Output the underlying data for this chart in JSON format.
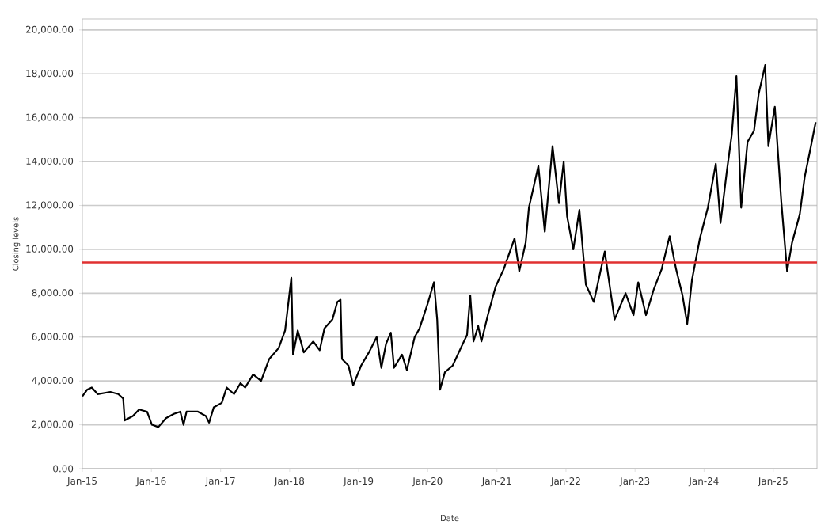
{
  "chart_data": {
    "type": "line",
    "xlabel": "Date",
    "ylabel": "Closing levels",
    "xlim": [
      "2015-01-01",
      "2025-08-20"
    ],
    "ylim": [
      0,
      20500
    ],
    "xticks": [
      {
        "value": "2015-01-01",
        "label": "Jan-15"
      },
      {
        "value": "2016-01-01",
        "label": "Jan-16"
      },
      {
        "value": "2017-01-01",
        "label": "Jan-17"
      },
      {
        "value": "2018-01-01",
        "label": "Jan-18"
      },
      {
        "value": "2019-01-01",
        "label": "Jan-19"
      },
      {
        "value": "2020-01-01",
        "label": "Jan-20"
      },
      {
        "value": "2021-01-01",
        "label": "Jan-21"
      },
      {
        "value": "2022-01-01",
        "label": "Jan-22"
      },
      {
        "value": "2023-01-01",
        "label": "Jan-23"
      },
      {
        "value": "2024-01-01",
        "label": "Jan-24"
      },
      {
        "value": "2025-01-01",
        "label": "Jan-25"
      }
    ],
    "yticks": [
      {
        "value": 0,
        "label": "0.00"
      },
      {
        "value": 2000,
        "label": "2,000.00"
      },
      {
        "value": 4000,
        "label": "4,000.00"
      },
      {
        "value": 6000,
        "label": "6,000.00"
      },
      {
        "value": 8000,
        "label": "8,000.00"
      },
      {
        "value": 10000,
        "label": "10,000.00"
      },
      {
        "value": 12000,
        "label": "12,000.00"
      },
      {
        "value": 14000,
        "label": "14,000.00"
      },
      {
        "value": 16000,
        "label": "16,000.00"
      },
      {
        "value": 18000,
        "label": "18,000.00"
      },
      {
        "value": 20000,
        "label": "20,000.00"
      }
    ],
    "grid": "y",
    "marker": "none",
    "line_style": "solid",
    "ref_lines": [
      {
        "axis": "y",
        "value": 9400,
        "color": "#e03030"
      }
    ],
    "series": [
      {
        "color": "#000000",
        "x": [
          "2015-01-01",
          "2015-01-26",
          "2015-02-20",
          "2015-03-23",
          "2015-05-29",
          "2015-07-10",
          "2015-08-05",
          "2015-08-13",
          "2015-09-25",
          "2015-10-28",
          "2015-12-09",
          "2016-01-04",
          "2016-02-07",
          "2016-03-18",
          "2016-04-29",
          "2016-06-02",
          "2016-06-19",
          "2016-07-05",
          "2016-09-03",
          "2016-10-15",
          "2016-11-01",
          "2016-11-26",
          "2017-01-07",
          "2017-02-02",
          "2017-03-13",
          "2017-04-16",
          "2017-05-11",
          "2017-06-22",
          "2017-08-03",
          "2017-09-15",
          "2017-11-04",
          "2017-12-08",
          "2018-01-10",
          "2018-01-19",
          "2018-02-13",
          "2018-03-17",
          "2018-05-06",
          "2018-06-09",
          "2018-07-04",
          "2018-08-15",
          "2018-09-10",
          "2018-09-27",
          "2018-10-05",
          "2018-11-08",
          "2018-12-03",
          "2019-01-14",
          "2019-02-24",
          "2019-04-06",
          "2019-05-01",
          "2019-05-26",
          "2019-06-20",
          "2019-07-07",
          "2019-08-18",
          "2019-09-13",
          "2019-10-24",
          "2019-11-19",
          "2019-12-31",
          "2020-02-03",
          "2020-02-20",
          "2020-03-06",
          "2020-04-01",
          "2020-05-12",
          "2020-06-24",
          "2020-07-27",
          "2020-08-13",
          "2020-08-30",
          "2020-09-24",
          "2020-10-11",
          "2020-11-14",
          "2020-12-25",
          "2021-02-06",
          "2021-04-04",
          "2021-04-29",
          "2021-06-02",
          "2021-06-19",
          "2021-08-08",
          "2021-09-11",
          "2021-10-22",
          "2021-11-25",
          "2021-12-20",
          "2022-01-07",
          "2022-02-09",
          "2022-03-13",
          "2022-04-16",
          "2022-05-28",
          "2022-07-25",
          "2022-09-15",
          "2022-11-12",
          "2022-12-24",
          "2023-01-18",
          "2023-02-28",
          "2023-04-11",
          "2023-05-22",
          "2023-07-03",
          "2023-08-06",
          "2023-09-09",
          "2023-10-04",
          "2023-10-29",
          "2023-12-10",
          "2024-01-21",
          "2024-03-03",
          "2024-03-28",
          "2024-05-01",
          "2024-05-26",
          "2024-06-20",
          "2024-07-15",
          "2024-08-18",
          "2024-09-21",
          "2024-10-16",
          "2024-11-19",
          "2024-12-06",
          "2025-01-09",
          "2025-02-12",
          "2025-03-15",
          "2025-04-10",
          "2025-05-21",
          "2025-06-16",
          "2025-07-19",
          "2025-08-13"
        ],
        "values": [
          3300,
          3600,
          3700,
          3400,
          3500,
          3400,
          3200,
          2200,
          2400,
          2700,
          2600,
          2000,
          1900,
          2300,
          2500,
          2600,
          2000,
          2600,
          2600,
          2400,
          2100,
          2800,
          3000,
          3700,
          3400,
          3900,
          3700,
          4300,
          4000,
          5000,
          5500,
          6300,
          8700,
          5200,
          6300,
          5300,
          5800,
          5400,
          6400,
          6800,
          7600,
          7700,
          5000,
          4700,
          3800,
          4700,
          5300,
          6000,
          4600,
          5700,
          6200,
          4600,
          5200,
          4500,
          6000,
          6400,
          7500,
          8500,
          6800,
          3600,
          4400,
          4700,
          5500,
          6100,
          7900,
          5800,
          6500,
          5800,
          7000,
          8300,
          9100,
          10500,
          9000,
          10300,
          11900,
          13800,
          10800,
          14700,
          12100,
          14000,
          11500,
          10000,
          11800,
          8400,
          7600,
          9900,
          6800,
          8000,
          7000,
          8500,
          7000,
          8200,
          9100,
          10600,
          9100,
          7900,
          6600,
          8600,
          10500,
          11900,
          13900,
          11200,
          13600,
          15200,
          17900,
          11900,
          14900,
          15400,
          17100,
          18400,
          14700,
          16500,
          12200,
          9000,
          10300,
          11600,
          13300,
          14700,
          15800
        ]
      }
    ]
  }
}
